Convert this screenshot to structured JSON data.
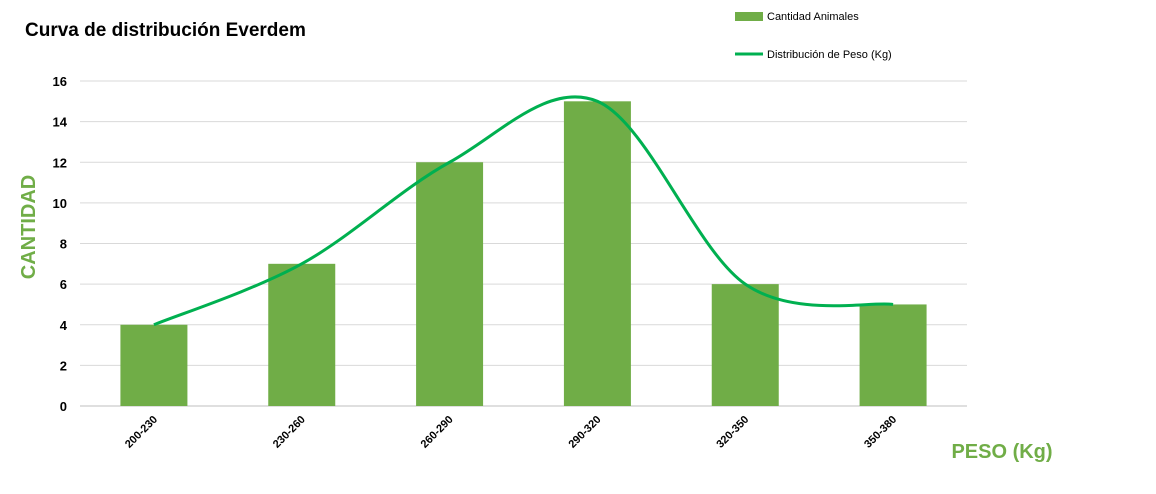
{
  "chart_data": {
    "type": "bar",
    "title": "Curva de distribución Everdem",
    "xlabel": "PESO (Kg)",
    "ylabel": "CANTIDAD",
    "categories": [
      "200-230",
      "230-260",
      "260-290",
      "290-320",
      "320-350",
      "350-380"
    ],
    "series": [
      {
        "name": "Cantidad Animales",
        "type": "bar",
        "color": "#70ad47",
        "values": [
          4,
          7,
          12,
          15,
          6,
          5
        ]
      },
      {
        "name": "Distribución de Peso (Kg)",
        "type": "line",
        "smooth": true,
        "color": "#00b050",
        "values": [
          4,
          7,
          12,
          15,
          6,
          5
        ]
      }
    ],
    "yticks": [
      "0",
      "2",
      "4",
      "6",
      "8",
      "10",
      "12",
      "14",
      "16"
    ],
    "ylim": [
      0,
      16
    ],
    "grid": true,
    "legend_position": "top-right",
    "axis_title_color": "#70ad47"
  }
}
